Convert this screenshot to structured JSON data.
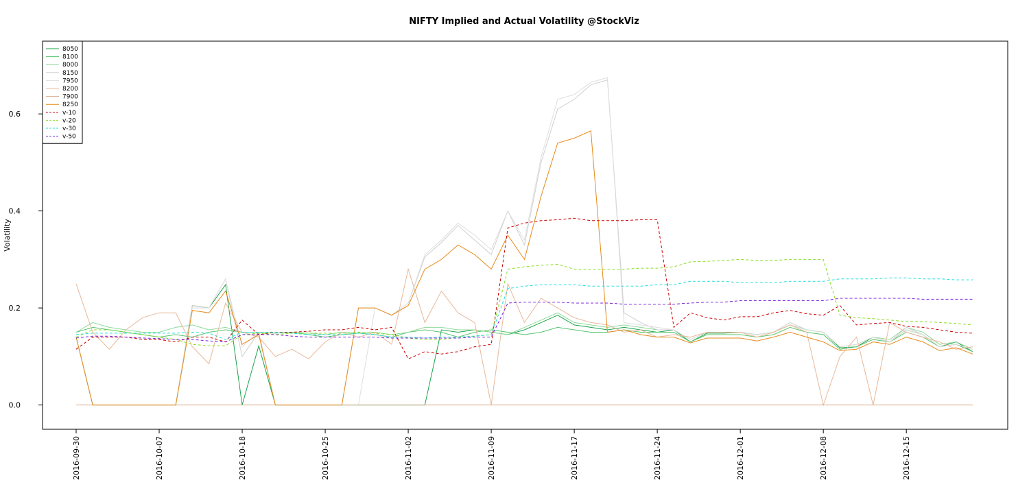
{
  "chart_data": {
    "type": "line",
    "title": "NIFTY Implied and Actual Volatility @StockViz",
    "xlabel": "",
    "ylabel": "Volatility",
    "ylim": [
      -0.05,
      0.75
    ],
    "yticks": [
      0.0,
      0.2,
      0.4,
      0.6
    ],
    "ytick_labels": [
      "0.0",
      "0.2",
      "0.4",
      "0.6"
    ],
    "x_tick_labels": [
      "2016-09-30",
      "2016-10-07",
      "2016-10-18",
      "2016-10-25",
      "2016-11-02",
      "2016-11-09",
      "2016-11-17",
      "2016-11-24",
      "2016-12-01",
      "2016-12-08",
      "2016-12-15"
    ],
    "x_tick_index": [
      0,
      5,
      10,
      15,
      20,
      25,
      30,
      35,
      40,
      45,
      50
    ],
    "n_points": 55,
    "grid": false,
    "legend_position": "top-left",
    "series": [
      {
        "name": "8050",
        "color": "#1aa34a",
        "dash": "none",
        "values": [
          0.14,
          0.0,
          0.0,
          0.0,
          0.0,
          0.0,
          0.0,
          0.205,
          0.2,
          0.248,
          0.0,
          0.122,
          0.0,
          0.0,
          0.0,
          0.0,
          0.0,
          0.0,
          0.0,
          0.0,
          0.0,
          0.0,
          0.155,
          0.15,
          0.155,
          0.15,
          0.145,
          0.155,
          0.17,
          0.185,
          0.165,
          0.16,
          0.155,
          0.16,
          0.155,
          0.15,
          0.155,
          0.13,
          0.148,
          0.148,
          0.15,
          0.145,
          0.15,
          0.165,
          0.155,
          0.15,
          0.118,
          0.12,
          0.14,
          0.13,
          0.155,
          0.145,
          0.12,
          0.13,
          0.11
        ]
      },
      {
        "name": "8100",
        "color": "#55c46b",
        "dash": "none",
        "values": [
          0.15,
          0.16,
          0.155,
          0.15,
          0.145,
          0.14,
          0.145,
          0.14,
          0.15,
          0.155,
          0.15,
          0.15,
          0.148,
          0.15,
          0.145,
          0.14,
          0.145,
          0.148,
          0.145,
          0.14,
          0.15,
          0.155,
          0.15,
          0.14,
          0.15,
          0.155,
          0.15,
          0.145,
          0.15,
          0.16,
          0.155,
          0.15,
          0.15,
          0.155,
          0.15,
          0.15,
          0.15,
          0.13,
          0.145,
          0.145,
          0.145,
          0.14,
          0.145,
          0.16,
          0.15,
          0.145,
          0.115,
          0.12,
          0.135,
          0.13,
          0.15,
          0.14,
          0.12,
          0.125,
          0.11
        ]
      },
      {
        "name": "8000",
        "color": "#8fd99a",
        "dash": "none",
        "values": [
          0.15,
          0.17,
          0.16,
          0.155,
          0.15,
          0.15,
          0.16,
          0.165,
          0.155,
          0.16,
          0.15,
          0.15,
          0.148,
          0.15,
          0.148,
          0.145,
          0.15,
          0.148,
          0.15,
          0.145,
          0.15,
          0.16,
          0.16,
          0.155,
          0.155,
          0.15,
          0.145,
          0.16,
          0.175,
          0.19,
          0.17,
          0.165,
          0.16,
          0.165,
          0.16,
          0.155,
          0.155,
          0.135,
          0.15,
          0.15,
          0.15,
          0.145,
          0.15,
          0.165,
          0.155,
          0.15,
          0.12,
          0.125,
          0.14,
          0.135,
          0.16,
          0.15,
          0.125,
          0.13,
          0.115
        ]
      },
      {
        "name": "8150",
        "color": "#cfcfcf",
        "dash": "none",
        "values": [
          0.14,
          0.0,
          0.0,
          0.0,
          0.0,
          0.0,
          0.0,
          0.205,
          0.2,
          0.26,
          0.1,
          0.15,
          0.0,
          0.0,
          0.0,
          0.0,
          0.0,
          0.2,
          0.2,
          0.185,
          0.21,
          0.305,
          0.335,
          0.37,
          0.34,
          0.31,
          0.4,
          0.33,
          0.5,
          0.61,
          0.63,
          0.66,
          0.67,
          0.19,
          0.17,
          0.155,
          0.155,
          0.135,
          0.15,
          0.15,
          0.15,
          0.145,
          0.15,
          0.17,
          0.155,
          0.15,
          0.12,
          0.125,
          0.14,
          0.13,
          0.16,
          0.145,
          0.12,
          0.125,
          0.115
        ]
      },
      {
        "name": "7950",
        "color": "#dedede",
        "dash": "none",
        "values": [
          0.14,
          0.0,
          0.0,
          0.0,
          0.0,
          0.0,
          0.0,
          0.2,
          0.2,
          0.26,
          0.12,
          0.15,
          0.0,
          0.0,
          0.0,
          0.0,
          0.0,
          0.0,
          0.2,
          0.185,
          0.21,
          0.31,
          0.34,
          0.375,
          0.35,
          0.32,
          0.4,
          0.34,
          0.51,
          0.63,
          0.64,
          0.665,
          0.675,
          0.17,
          0.165,
          0.16,
          0.155,
          0.135,
          0.15,
          0.15,
          0.15,
          0.145,
          0.15,
          0.165,
          0.155,
          0.15,
          0.12,
          0.125,
          0.14,
          0.13,
          0.155,
          0.145,
          0.12,
          0.125,
          0.115
        ]
      },
      {
        "name": "8200",
        "color": "#e8b898",
        "dash": "none",
        "values": [
          0.25,
          0.15,
          0.115,
          0.155,
          0.18,
          0.19,
          0.19,
          0.12,
          0.085,
          0.21,
          0.15,
          0.14,
          0.1,
          0.115,
          0.095,
          0.13,
          0.15,
          0.14,
          0.15,
          0.125,
          0.28,
          0.17,
          0.235,
          0.19,
          0.17,
          0.0,
          0.25,
          0.17,
          0.22,
          0.2,
          0.18,
          0.17,
          0.165,
          0.15,
          0.155,
          0.14,
          0.145,
          0.14,
          0.15,
          0.15,
          0.15,
          0.14,
          0.15,
          0.165,
          0.15,
          0.0,
          0.1,
          0.14,
          0.0,
          0.17,
          0.15,
          0.14,
          0.13,
          0.115,
          0.12
        ]
      },
      {
        "name": "7900",
        "color": "#d8a888",
        "dash": "none",
        "values": [
          0.0,
          0.0,
          0.0,
          0.0,
          0.0,
          0.0,
          0.0,
          0.0,
          0.0,
          0.0,
          0.0,
          0.0,
          0.0,
          0.0,
          0.0,
          0.0,
          0.0,
          0.0,
          0.0,
          0.0,
          0.0,
          0.0,
          0.0,
          0.0,
          0.0,
          0.0,
          0.0,
          0.0,
          0.0,
          0.0,
          0.0,
          0.0,
          0.0,
          0.0,
          0.0,
          0.0,
          0.0,
          0.0,
          0.0,
          0.0,
          0.0,
          0.0,
          0.0,
          0.0,
          0.0,
          0.0,
          0.0,
          0.0,
          0.0,
          0.0,
          0.0,
          0.0,
          0.0,
          0.0,
          0.0
        ]
      },
      {
        "name": "8250",
        "color": "#e68a1a",
        "dash": "none",
        "values": [
          0.14,
          0.0,
          0.0,
          0.0,
          0.0,
          0.0,
          0.0,
          0.195,
          0.19,
          0.235,
          0.125,
          0.145,
          0.0,
          0.0,
          0.0,
          0.0,
          0.0,
          0.2,
          0.2,
          0.185,
          0.205,
          0.28,
          0.3,
          0.33,
          0.31,
          0.28,
          0.35,
          0.3,
          0.43,
          0.54,
          0.55,
          0.565,
          0.15,
          0.155,
          0.145,
          0.14,
          0.14,
          0.128,
          0.138,
          0.138,
          0.138,
          0.132,
          0.14,
          0.15,
          0.14,
          0.13,
          0.112,
          0.115,
          0.13,
          0.125,
          0.14,
          0.13,
          0.112,
          0.118,
          0.105
        ]
      },
      {
        "name": "v-10",
        "color": "#cc0000",
        "dash": "4,3",
        "values": [
          0.115,
          0.14,
          0.14,
          0.14,
          0.135,
          0.135,
          0.13,
          0.14,
          0.14,
          0.13,
          0.175,
          0.145,
          0.15,
          0.15,
          0.152,
          0.155,
          0.155,
          0.16,
          0.155,
          0.16,
          0.095,
          0.11,
          0.105,
          0.11,
          0.12,
          0.125,
          0.365,
          0.375,
          0.38,
          0.382,
          0.385,
          0.38,
          0.38,
          0.38,
          0.382,
          0.382,
          0.16,
          0.19,
          0.18,
          0.175,
          0.182,
          0.182,
          0.19,
          0.195,
          0.188,
          0.185,
          0.205,
          0.165,
          0.168,
          0.17,
          0.162,
          0.16,
          0.155,
          0.15,
          0.148
        ]
      },
      {
        "name": "v-20",
        "color": "#88dd22",
        "dash": "4,3",
        "values": [
          0.14,
          0.155,
          0.155,
          0.15,
          0.145,
          0.14,
          0.135,
          0.125,
          0.122,
          0.122,
          0.145,
          0.148,
          0.145,
          0.148,
          0.148,
          0.148,
          0.148,
          0.15,
          0.148,
          0.145,
          0.138,
          0.135,
          0.135,
          0.14,
          0.142,
          0.145,
          0.28,
          0.285,
          0.288,
          0.29,
          0.28,
          0.28,
          0.28,
          0.28,
          0.282,
          0.282,
          0.285,
          0.295,
          0.296,
          0.298,
          0.3,
          0.298,
          0.298,
          0.3,
          0.3,
          0.3,
          0.185,
          0.18,
          0.178,
          0.175,
          0.172,
          0.172,
          0.17,
          0.168,
          0.165
        ]
      },
      {
        "name": "v-30",
        "color": "#22dddd",
        "dash": "4,3",
        "values": [
          0.145,
          0.148,
          0.148,
          0.148,
          0.148,
          0.148,
          0.148,
          0.15,
          0.148,
          0.135,
          0.15,
          0.15,
          0.15,
          0.148,
          0.145,
          0.145,
          0.145,
          0.148,
          0.145,
          0.14,
          0.14,
          0.138,
          0.14,
          0.14,
          0.142,
          0.145,
          0.24,
          0.245,
          0.248,
          0.248,
          0.248,
          0.245,
          0.245,
          0.245,
          0.245,
          0.248,
          0.248,
          0.255,
          0.255,
          0.255,
          0.252,
          0.252,
          0.252,
          0.255,
          0.255,
          0.255,
          0.26,
          0.26,
          0.26,
          0.262,
          0.262,
          0.26,
          0.26,
          0.258,
          0.258
        ]
      },
      {
        "name": "v-50",
        "color": "#7a22dd",
        "dash": "4,3",
        "values": [
          0.138,
          0.142,
          0.142,
          0.14,
          0.138,
          0.137,
          0.135,
          0.135,
          0.132,
          0.13,
          0.145,
          0.145,
          0.145,
          0.142,
          0.14,
          0.14,
          0.14,
          0.14,
          0.14,
          0.138,
          0.138,
          0.138,
          0.138,
          0.138,
          0.14,
          0.14,
          0.21,
          0.212,
          0.212,
          0.212,
          0.21,
          0.21,
          0.21,
          0.208,
          0.208,
          0.208,
          0.208,
          0.21,
          0.212,
          0.212,
          0.215,
          0.215,
          0.215,
          0.215,
          0.215,
          0.215,
          0.22,
          0.22,
          0.22,
          0.22,
          0.22,
          0.218,
          0.218,
          0.218,
          0.218
        ]
      }
    ]
  }
}
